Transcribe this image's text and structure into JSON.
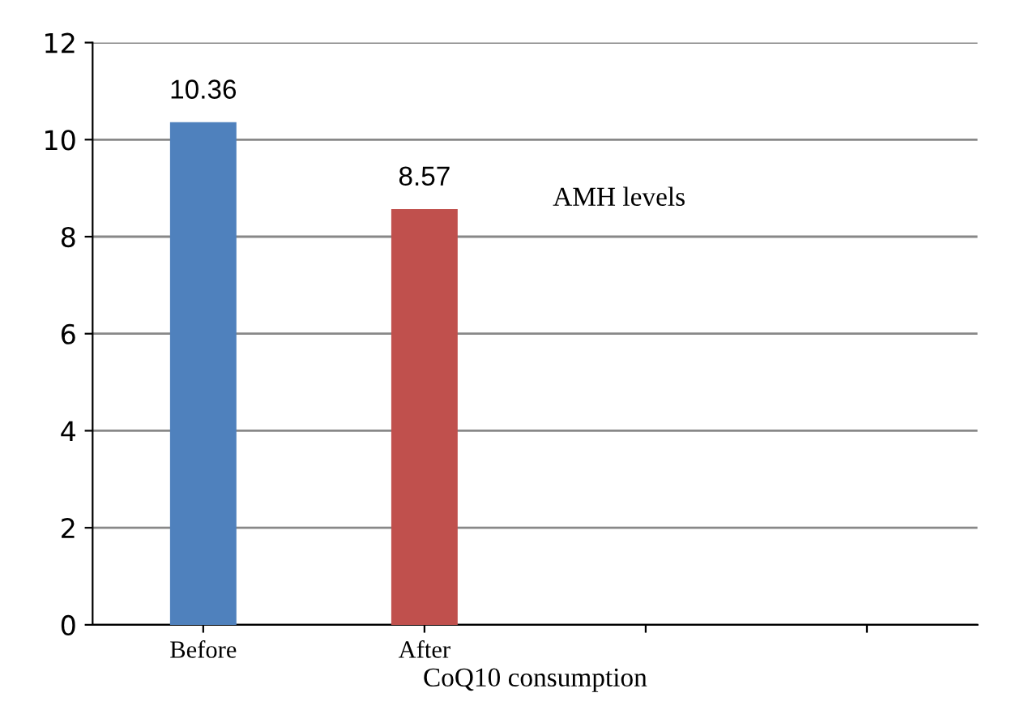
{
  "chart_data": {
    "type": "bar",
    "xlabel": "CoQ10 consumption",
    "categories": [
      "Before",
      "After",
      null,
      null
    ],
    "values": [
      10.36,
      8.57,
      null,
      null
    ],
    "colors": [
      "#4f81bd",
      "#c0504d",
      "#4f81bd",
      "#c0504d"
    ],
    "ylim": [
      0,
      12
    ],
    "yticks": [
      0,
      2,
      4,
      6,
      8,
      10,
      12
    ],
    "grid": "y",
    "data_labels": true,
    "annotations": [
      "AMH levels"
    ]
  }
}
